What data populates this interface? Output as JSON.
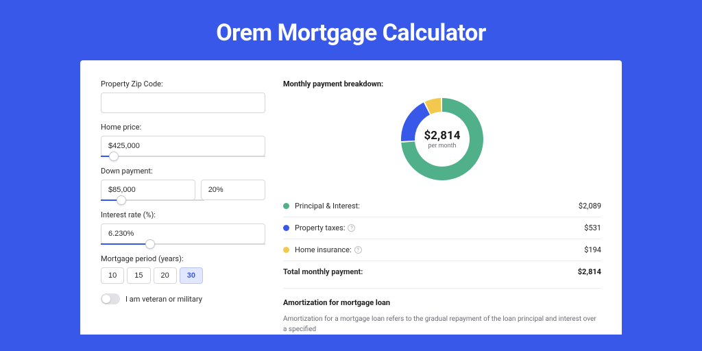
{
  "page": {
    "title": "Orem Mortgage Calculator",
    "background_color": "#3858e9"
  },
  "form": {
    "zip": {
      "label": "Property Zip Code:",
      "value": ""
    },
    "home_price": {
      "label": "Home price:",
      "value": "$425,000",
      "slider_pct": 8
    },
    "down_payment": {
      "label": "Down payment:",
      "amount": "$85,000",
      "percent": "20%",
      "slider_pct": 20
    },
    "interest_rate": {
      "label": "Interest rate (%):",
      "value": "6.230%",
      "slider_pct": 30
    },
    "mortgage_period": {
      "label": "Mortgage period (years):",
      "options": [
        "10",
        "15",
        "20",
        "30"
      ],
      "selected": "30"
    },
    "veteran": {
      "label": "I am veteran or military",
      "checked": false
    }
  },
  "breakdown": {
    "heading": "Monthly payment breakdown:",
    "center_value": "$2,814",
    "center_sub": "per month",
    "donut": {
      "size": 128,
      "thickness": 20,
      "slices": [
        {
          "label": "Principal & Interest:",
          "value": "$2,089",
          "pct": 74.2,
          "color": "#4fb08a"
        },
        {
          "label": "Property taxes:",
          "value": "$531",
          "pct": 18.9,
          "color": "#3858e9",
          "has_info": true
        },
        {
          "label": "Home insurance:",
          "value": "$194",
          "pct": 6.9,
          "color": "#f2c94c",
          "has_info": true
        }
      ]
    },
    "total": {
      "label": "Total monthly payment:",
      "value": "$2,814"
    }
  },
  "amortization": {
    "heading": "Amortization for mortgage loan",
    "text": "Amortization for a mortgage loan refers to the gradual repayment of the loan principal and interest over a specified"
  }
}
